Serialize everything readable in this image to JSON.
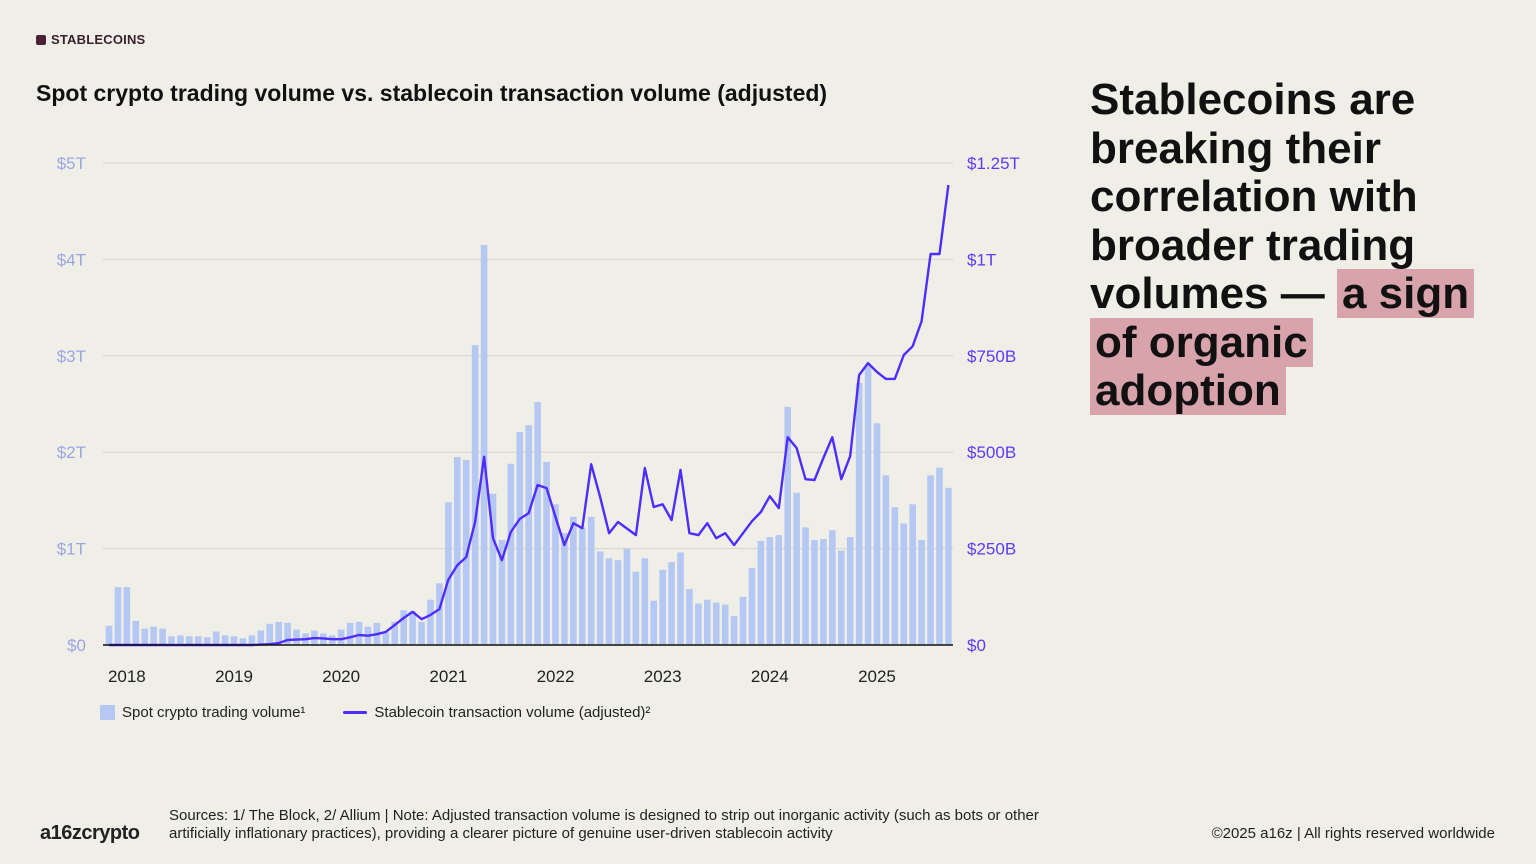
{
  "tag": "STABLECOINS",
  "title": "Spot crypto trading volume vs. stablecoin transaction volume (adjusted)",
  "headline": {
    "plain": "Stablecoins are breaking their correlation with broader trading volumes — ",
    "highlight": "a sign of organic adoption",
    "highlight_color": "#d8a3ab"
  },
  "footer": {
    "logo": "a16zcrypto",
    "sources": "Sources: 1/ The Block, 2/ Allium  |  Note: Adjusted transaction volume is designed to strip out inorganic activity (such as bots or other artificially inflationary practices), providing a clearer picture of genuine user-driven stablecoin activity",
    "copyright": "©2025 a16z | All rights reserved worldwide"
  },
  "chart_data": {
    "type": "bar+line",
    "title": "Spot crypto trading volume vs. stablecoin transaction volume (adjusted)",
    "x_tick_labels": [
      "2018",
      "2019",
      "2020",
      "2021",
      "2022",
      "2023",
      "2024",
      "2025"
    ],
    "y_left": {
      "ticks": [
        "$0",
        "$1T",
        "$2T",
        "$3T",
        "$4T",
        "$5T"
      ],
      "range_trillions": [
        0,
        5
      ],
      "color": "#9aa6e6"
    },
    "y_right": {
      "ticks": [
        "$0",
        "$250B",
        "$500B",
        "$750B",
        "$1T",
        "$1.25T"
      ],
      "range_billions": [
        0,
        1250
      ],
      "color": "#5b3cf5"
    },
    "grid": true,
    "legend_position": "bottom-left",
    "x": [
      "2017-11",
      "2017-12",
      "2018-01",
      "2018-02",
      "2018-03",
      "2018-04",
      "2018-05",
      "2018-06",
      "2018-07",
      "2018-08",
      "2018-09",
      "2018-10",
      "2018-11",
      "2018-12",
      "2019-01",
      "2019-02",
      "2019-03",
      "2019-04",
      "2019-05",
      "2019-06",
      "2019-07",
      "2019-08",
      "2019-09",
      "2019-10",
      "2019-11",
      "2019-12",
      "2020-01",
      "2020-02",
      "2020-03",
      "2020-04",
      "2020-05",
      "2020-06",
      "2020-07",
      "2020-08",
      "2020-09",
      "2020-10",
      "2020-11",
      "2020-12",
      "2021-01",
      "2021-02",
      "2021-03",
      "2021-04",
      "2021-05",
      "2021-06",
      "2021-07",
      "2021-08",
      "2021-09",
      "2021-10",
      "2021-11",
      "2021-12",
      "2022-01",
      "2022-02",
      "2022-03",
      "2022-04",
      "2022-05",
      "2022-06",
      "2022-07",
      "2022-08",
      "2022-09",
      "2022-10",
      "2022-11",
      "2022-12",
      "2023-01",
      "2023-02",
      "2023-03",
      "2023-04",
      "2023-05",
      "2023-06",
      "2023-07",
      "2023-08",
      "2023-09",
      "2023-10",
      "2023-11",
      "2023-12",
      "2024-01",
      "2024-02",
      "2024-03",
      "2024-04",
      "2024-05",
      "2024-06",
      "2024-07",
      "2024-08",
      "2024-09",
      "2024-10",
      "2024-11",
      "2024-12",
      "2025-01",
      "2025-02",
      "2025-03",
      "2025-04",
      "2025-05",
      "2025-06",
      "2025-07",
      "2025-08",
      "2025-09"
    ],
    "series": [
      {
        "name": "Spot crypto trading volume¹",
        "type": "bar",
        "axis": "left",
        "unit": "trillion USD",
        "color": "#b5c7f3",
        "values": [
          0.2,
          0.6,
          0.6,
          0.25,
          0.17,
          0.19,
          0.17,
          0.09,
          0.1,
          0.09,
          0.09,
          0.08,
          0.14,
          0.1,
          0.09,
          0.07,
          0.1,
          0.15,
          0.22,
          0.24,
          0.23,
          0.16,
          0.12,
          0.15,
          0.12,
          0.1,
          0.16,
          0.23,
          0.24,
          0.19,
          0.23,
          0.13,
          0.24,
          0.36,
          0.35,
          0.24,
          0.47,
          0.64,
          1.48,
          1.95,
          1.92,
          3.11,
          4.15,
          1.57,
          1.09,
          1.88,
          2.21,
          2.28,
          2.52,
          1.9,
          1.46,
          1.16,
          1.33,
          1.22,
          1.33,
          0.97,
          0.9,
          0.88,
          1.0,
          0.76,
          0.9,
          0.46,
          0.78,
          0.86,
          0.96,
          0.58,
          0.43,
          0.47,
          0.44,
          0.42,
          0.3,
          0.5,
          0.8,
          1.08,
          1.12,
          1.14,
          2.47,
          1.58,
          1.22,
          1.09,
          1.1,
          1.19,
          0.98,
          1.12,
          2.72,
          2.9,
          2.3,
          1.76,
          1.43,
          1.26,
          1.46,
          1.09,
          1.76,
          1.84,
          1.63
        ]
      },
      {
        "name": "Stablecoin transaction volume (adjusted)²",
        "type": "line",
        "axis": "right",
        "unit": "billion USD",
        "color": "#4f2dff",
        "values": [
          0,
          0,
          0,
          0,
          0,
          0,
          0,
          0,
          0,
          0,
          0,
          0,
          0,
          0,
          0,
          0,
          0,
          1,
          2,
          5,
          13,
          14,
          15,
          18,
          17,
          15,
          15,
          20,
          26,
          24,
          28,
          34,
          52,
          70,
          86,
          67,
          78,
          93,
          169,
          207,
          228,
          319,
          488,
          277,
          220,
          293,
          327,
          342,
          415,
          407,
          332,
          259,
          316,
          303,
          469,
          384,
          290,
          319,
          302,
          285,
          459,
          358,
          365,
          324,
          454,
          290,
          285,
          316,
          277,
          290,
          259,
          290,
          321,
          345,
          386,
          355,
          539,
          511,
          430,
          428,
          485,
          539,
          430,
          490,
          700,
          731,
          708,
          690,
          690,
          752,
          775,
          840,
          1014,
          1014,
          1193
        ]
      }
    ]
  }
}
